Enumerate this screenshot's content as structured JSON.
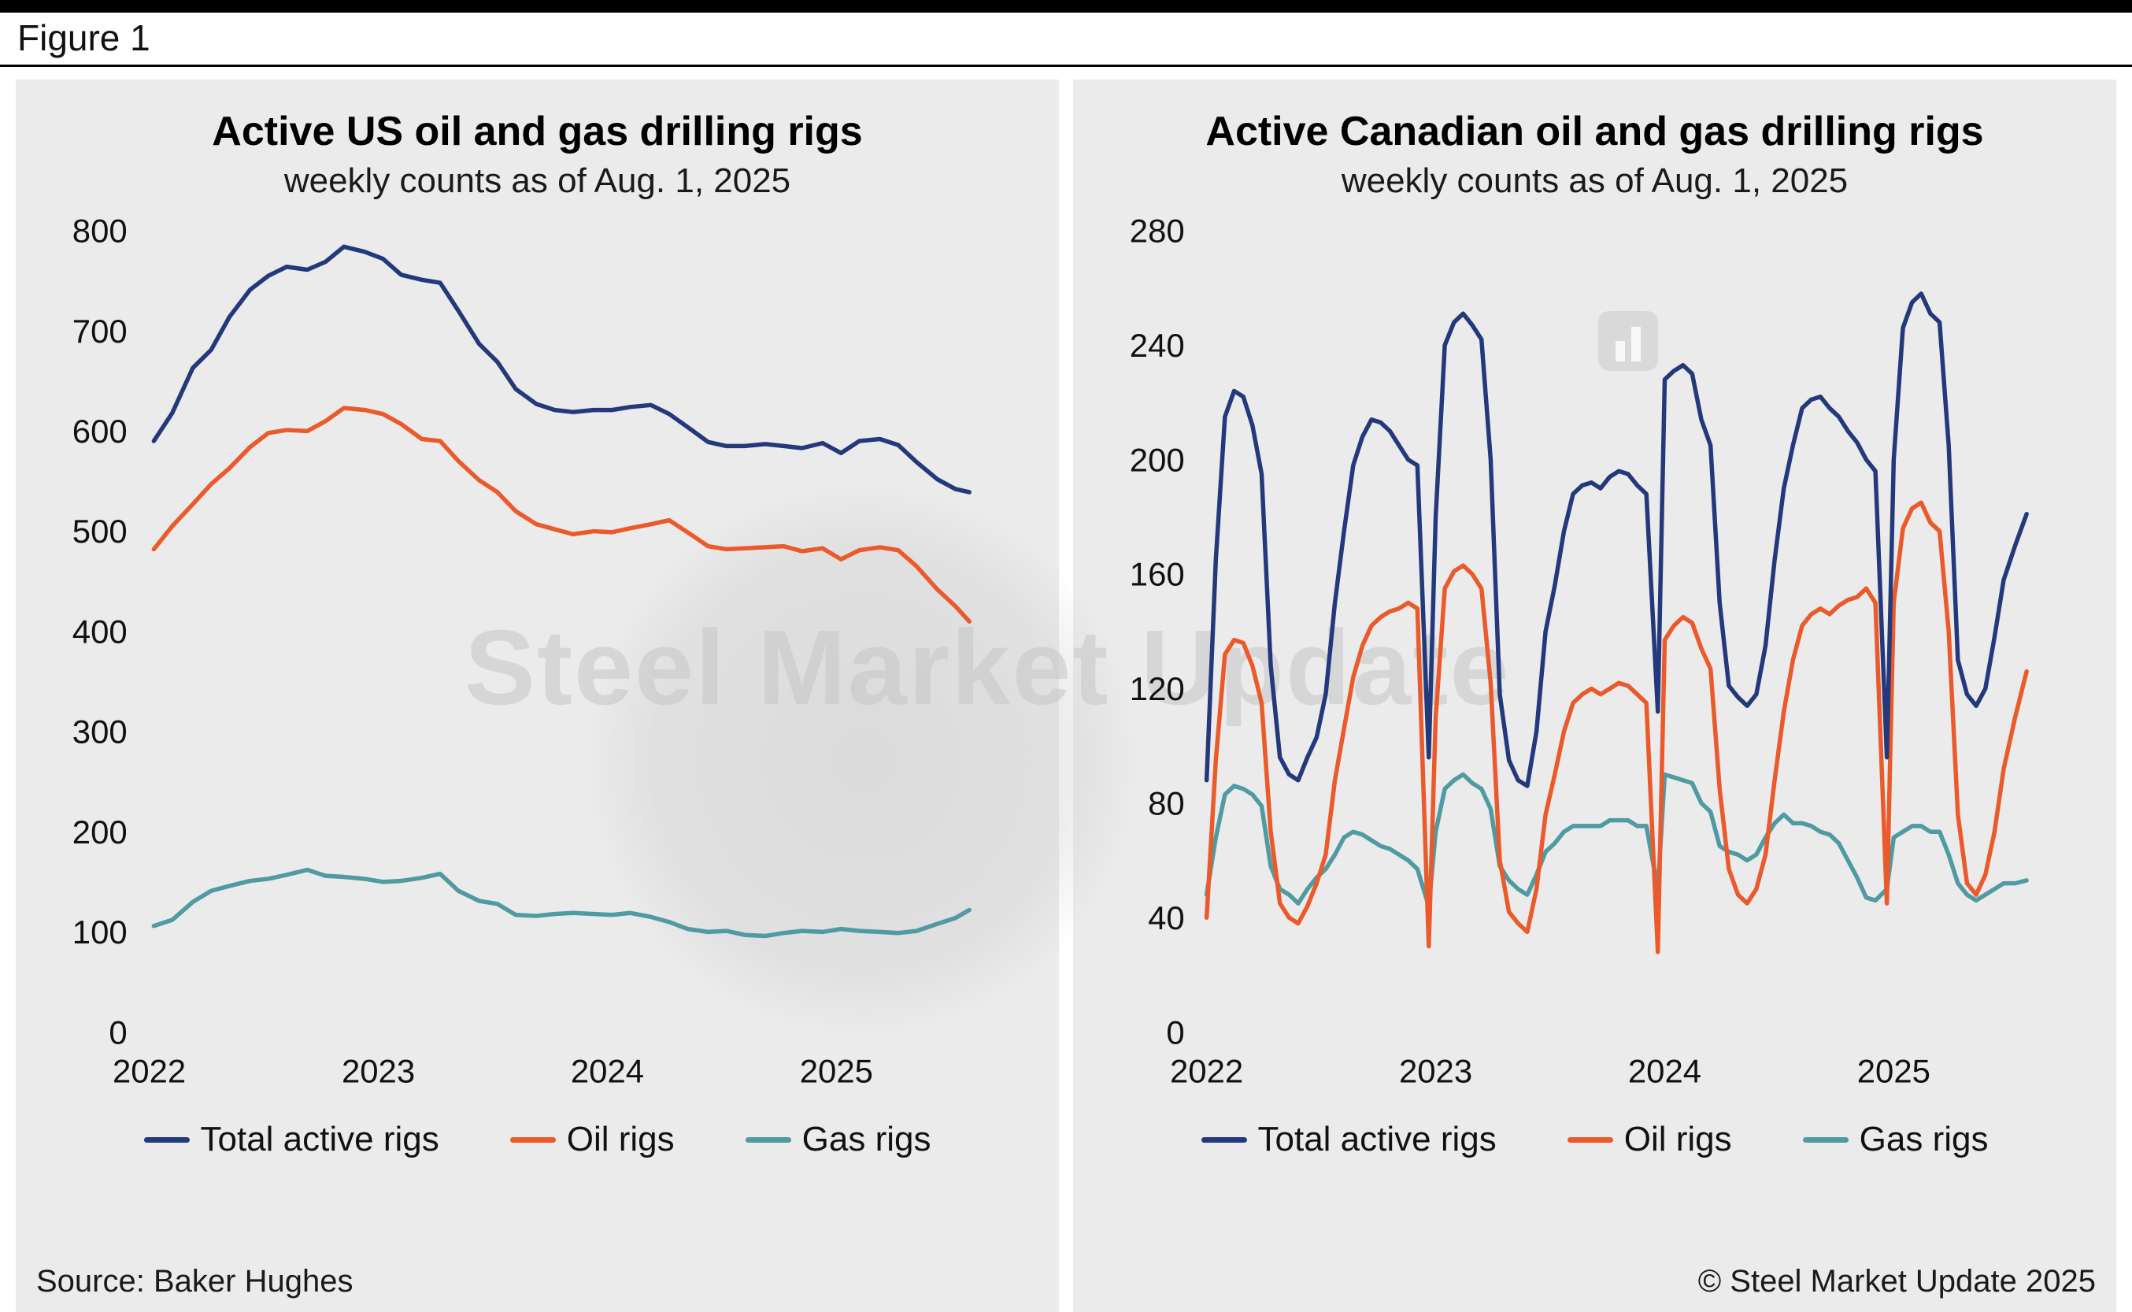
{
  "figure": {
    "label": "Figure 1"
  },
  "watermark": {
    "text": "Steel Market Update"
  },
  "footer": {
    "source": "Source: Baker Hughes",
    "copyright": "© Steel Market Update 2025"
  },
  "colors": {
    "navy": "#24397b",
    "orange": "#ea5a2b",
    "teal": "#509aa2",
    "panel_bg": "#ebebeb",
    "page_bg": "#ffffff"
  },
  "chart_data": [
    {
      "type": "line",
      "title": "Active US oil and gas drilling rigs",
      "subtitle": "weekly counts as of Aug. 1, 2025",
      "xlabel": "",
      "ylabel": "",
      "grid": false,
      "legend_position": "bottom",
      "xlim": [
        2022,
        2025.8
      ],
      "ylim": [
        0,
        800
      ],
      "xticks": [
        2022,
        2023,
        2024,
        2025
      ],
      "yticks": [
        0,
        100,
        200,
        300,
        400,
        500,
        600,
        700,
        800
      ],
      "x": [
        2022.02,
        2022.1,
        2022.19,
        2022.27,
        2022.35,
        2022.44,
        2022.52,
        2022.6,
        2022.69,
        2022.77,
        2022.85,
        2022.94,
        2023.02,
        2023.1,
        2023.19,
        2023.27,
        2023.35,
        2023.44,
        2023.52,
        2023.6,
        2023.69,
        2023.77,
        2023.85,
        2023.94,
        2024.02,
        2024.1,
        2024.19,
        2024.27,
        2024.35,
        2024.44,
        2024.52,
        2024.6,
        2024.69,
        2024.77,
        2024.85,
        2024.94,
        2025.02,
        2025.1,
        2025.19,
        2025.27,
        2025.35,
        2025.44,
        2025.52,
        2025.58
      ],
      "series": [
        {
          "name": "Total active rigs",
          "color": "#24397b",
          "values": [
            590,
            618,
            663,
            681,
            714,
            741,
            755,
            764,
            761,
            769,
            784,
            779,
            772,
            756,
            751,
            748,
            720,
            687,
            669,
            642,
            627,
            621,
            619,
            621,
            621,
            624,
            626,
            617,
            604,
            589,
            585,
            585,
            587,
            585,
            583,
            588,
            578,
            590,
            592,
            586,
            569,
            552,
            542,
            539
          ]
        },
        {
          "name": "Oil rigs",
          "color": "#ea5a2b",
          "values": [
            482,
            505,
            527,
            547,
            563,
            584,
            598,
            601,
            600,
            610,
            623,
            621,
            617,
            607,
            592,
            590,
            570,
            551,
            539,
            520,
            507,
            502,
            497,
            500,
            499,
            503,
            507,
            511,
            499,
            485,
            482,
            483,
            484,
            485,
            480,
            483,
            472,
            481,
            484,
            481,
            465,
            442,
            425,
            410
          ]
        },
        {
          "name": "Gas rigs",
          "color": "#509aa2",
          "values": [
            106,
            112,
            130,
            141,
            146,
            151,
            153,
            157,
            162,
            156,
            155,
            153,
            150,
            151,
            154,
            158,
            141,
            131,
            128,
            117,
            116,
            118,
            119,
            118,
            117,
            119,
            115,
            110,
            103,
            100,
            101,
            97,
            96,
            99,
            101,
            100,
            103,
            101,
            100,
            99,
            101,
            108,
            114,
            122
          ]
        }
      ]
    },
    {
      "type": "line",
      "title": "Active Canadian oil and gas drilling rigs",
      "subtitle": "weekly counts as of Aug. 1, 2025",
      "xlabel": "",
      "ylabel": "",
      "grid": false,
      "legend_position": "bottom",
      "xlim": [
        2022,
        2025.8
      ],
      "ylim": [
        0,
        280
      ],
      "xticks": [
        2022,
        2023,
        2024,
        2025
      ],
      "yticks": [
        0,
        40,
        80,
        120,
        160,
        200,
        240,
        280
      ],
      "x": [
        2022.0,
        2022.04,
        2022.08,
        2022.12,
        2022.16,
        2022.2,
        2022.24,
        2022.28,
        2022.32,
        2022.36,
        2022.4,
        2022.44,
        2022.48,
        2022.52,
        2022.56,
        2022.6,
        2022.64,
        2022.68,
        2022.72,
        2022.76,
        2022.8,
        2022.84,
        2022.88,
        2022.92,
        2022.97,
        2023.0,
        2023.04,
        2023.08,
        2023.12,
        2023.16,
        2023.2,
        2023.24,
        2023.28,
        2023.32,
        2023.36,
        2023.4,
        2023.44,
        2023.48,
        2023.52,
        2023.56,
        2023.6,
        2023.64,
        2023.68,
        2023.72,
        2023.76,
        2023.8,
        2023.84,
        2023.88,
        2023.92,
        2023.97,
        2024.0,
        2024.04,
        2024.08,
        2024.12,
        2024.16,
        2024.2,
        2024.24,
        2024.28,
        2024.32,
        2024.36,
        2024.4,
        2024.44,
        2024.48,
        2024.52,
        2024.56,
        2024.6,
        2024.64,
        2024.68,
        2024.72,
        2024.76,
        2024.8,
        2024.84,
        2024.88,
        2024.92,
        2024.97,
        2025.0,
        2025.04,
        2025.08,
        2025.12,
        2025.16,
        2025.2,
        2025.24,
        2025.28,
        2025.32,
        2025.36,
        2025.4,
        2025.44,
        2025.48,
        2025.53,
        2025.58
      ],
      "series": [
        {
          "name": "Total active rigs",
          "color": "#24397b",
          "values": [
            88,
            165,
            215,
            224,
            222,
            212,
            195,
            128,
            96,
            90,
            88,
            96,
            103,
            118,
            150,
            175,
            198,
            208,
            214,
            213,
            210,
            205,
            200,
            198,
            96,
            180,
            240,
            248,
            251,
            247,
            242,
            200,
            118,
            95,
            88,
            86,
            105,
            140,
            156,
            175,
            188,
            191,
            192,
            190,
            194,
            196,
            195,
            191,
            188,
            112,
            228,
            231,
            233,
            230,
            214,
            205,
            150,
            121,
            117,
            114,
            118,
            135,
            165,
            190,
            205,
            218,
            221,
            222,
            218,
            215,
            210,
            206,
            200,
            196,
            96,
            200,
            246,
            255,
            258,
            251,
            248,
            205,
            130,
            118,
            114,
            120,
            138,
            158,
            170,
            181
          ]
        },
        {
          "name": "Oil rigs",
          "color": "#ea5a2b",
          "values": [
            40,
            95,
            132,
            137,
            136,
            128,
            115,
            70,
            45,
            40,
            38,
            44,
            52,
            62,
            88,
            106,
            124,
            135,
            142,
            145,
            147,
            148,
            150,
            148,
            30,
            110,
            155,
            161,
            163,
            160,
            155,
            122,
            60,
            42,
            38,
            35,
            50,
            76,
            90,
            105,
            115,
            118,
            120,
            118,
            120,
            122,
            121,
            118,
            115,
            28,
            137,
            142,
            145,
            143,
            134,
            127,
            85,
            57,
            48,
            45,
            50,
            62,
            88,
            112,
            130,
            142,
            146,
            148,
            146,
            149,
            151,
            152,
            155,
            150,
            45,
            150,
            176,
            183,
            185,
            178,
            175,
            140,
            76,
            52,
            48,
            55,
            70,
            92,
            110,
            126
          ]
        },
        {
          "name": "Gas rigs",
          "color": "#509aa2",
          "values": [
            48,
            68,
            83,
            86,
            85,
            83,
            79,
            58,
            50,
            48,
            45,
            50,
            54,
            57,
            62,
            68,
            70,
            69,
            67,
            65,
            64,
            62,
            60,
            57,
            44,
            70,
            85,
            88,
            90,
            87,
            85,
            78,
            58,
            53,
            50,
            48,
            55,
            63,
            66,
            70,
            72,
            72,
            72,
            72,
            74,
            74,
            74,
            72,
            72,
            50,
            90,
            89,
            88,
            87,
            80,
            77,
            65,
            63,
            62,
            60,
            62,
            68,
            73,
            76,
            73,
            73,
            72,
            70,
            69,
            66,
            60,
            54,
            47,
            46,
            50,
            68,
            70,
            72,
            72,
            70,
            70,
            62,
            52,
            48,
            46,
            48,
            50,
            52,
            52,
            53
          ]
        }
      ]
    }
  ]
}
